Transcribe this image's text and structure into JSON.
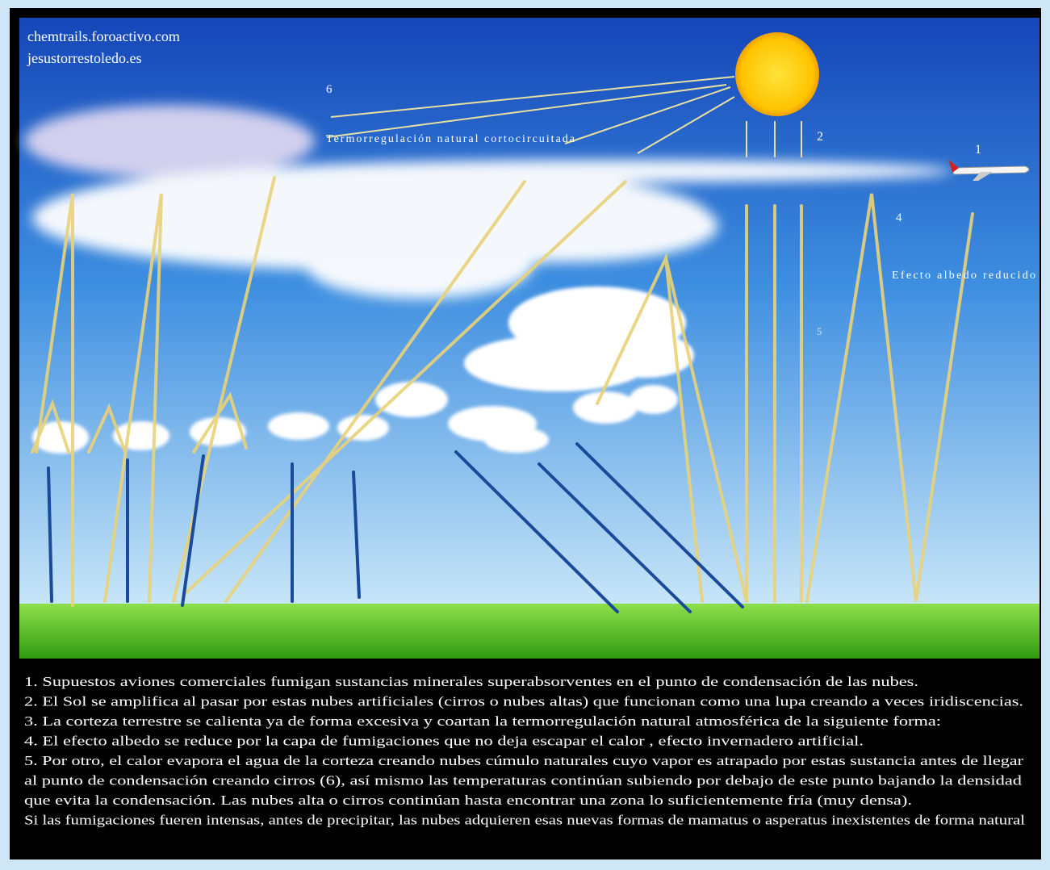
{
  "watermark": [
    "chemtrails.foroactivo.com",
    "jesustorrestoledo.es"
  ],
  "labels": {
    "six": "6",
    "thermo": "Termorregulación natural cortocircuitada",
    "two": "2",
    "one": "1",
    "four": "4",
    "albedo": "Efecto albedo reducido",
    "five": "5"
  },
  "caption": [
    "1. Supuestos aviones comerciales fumigan sustancias minerales superabsorventes en el punto de condensación de las nubes.",
    "2. El Sol se amplifica al pasar por estas nubes artificiales (cirros o nubes altas) que funcionan como una lupa creando a veces iridiscencias.",
    "3. La corteza terrestre se calienta ya de forma excesiva y coartan la termorregulación natural atmosférica de la siguiente forma:",
    "4. El efecto albedo se reduce por la capa de fumigaciones que no deja escapar el calor , efecto invernadero artificial.",
    "5. Por otro, el calor evapora el agua de la corteza creando nubes cúmulo naturales cuyo vapor es atrapado por estas sustancia antes de llegar",
    "al punto de condensación creando cirros (6), así mismo las temperaturas continúan subiendo por debajo de este punto bajando la densidad",
    "que evita la condensación. Las nubes alta o  cirros continúan hasta encontrar una zona lo suficientemente fría (muy densa).",
    "Si las fumigaciones fueren intensas, antes de precipitar, las nubes adquieren esas nuevas formas de mamatus o asperatus inexistentes de forma natural"
  ]
}
